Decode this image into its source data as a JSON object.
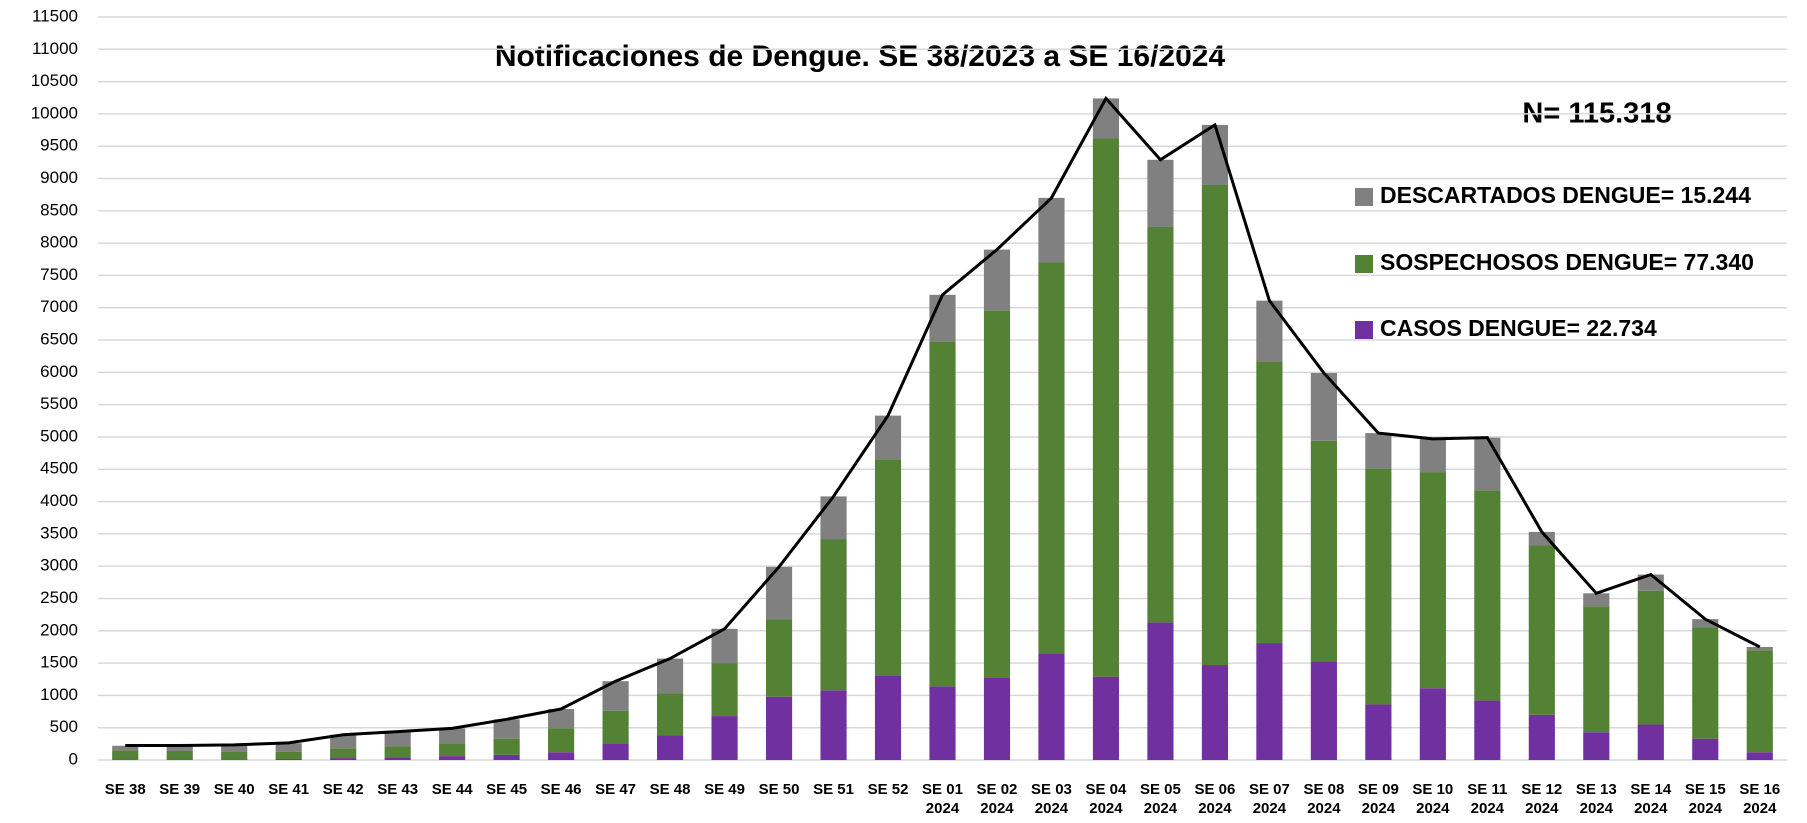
{
  "chart_data": {
    "type": "stacked_bar",
    "title": "Notificaciones de Dengue. SE  38/2023 a SE  16/2024",
    "annotation": "N= 115.318",
    "categories": [
      "SE 38",
      "SE 39",
      "SE 40",
      "SE 41",
      "SE 42",
      "SE 43",
      "SE 44",
      "SE 45",
      "SE 46",
      "SE 47",
      "SE 48",
      "SE 49",
      "SE 50",
      "SE 51",
      "SE 52",
      "SE 01\n2024",
      "SE 02\n2024",
      "SE 03\n2024",
      "SE 04\n2024",
      "SE 05\n2024",
      "SE 06\n2024",
      "SE 07\n2024",
      "SE 08\n2024",
      "SE 09\n2024",
      "SE 10\n2024",
      "SE 11\n2024",
      "SE 12\n2024",
      "SE 13\n2024",
      "SE 14\n2024",
      "SE 15\n2024",
      "SE 16\n2024"
    ],
    "series": [
      {
        "name": "CASOS DENGUE= 22.734",
        "color": "#7030a0",
        "values": [
          10,
          10,
          10,
          15,
          30,
          40,
          60,
          80,
          120,
          260,
          380,
          680,
          980,
          1080,
          1310,
          1140,
          1280,
          1650,
          1290,
          2130,
          1470,
          1810,
          1530,
          860,
          1110,
          920,
          700,
          430,
          550,
          330,
          120
        ]
      },
      {
        "name": "SOSPECHOSOS DENGUE= 77.340",
        "color": "#548235",
        "values": [
          140,
          130,
          120,
          110,
          150,
          170,
          200,
          250,
          370,
          500,
          650,
          820,
          1200,
          2340,
          3340,
          5340,
          5680,
          6050,
          8330,
          6120,
          7430,
          4350,
          3410,
          3650,
          3340,
          3250,
          2620,
          1950,
          2070,
          1720,
          1580
        ]
      },
      {
        "name": "DESCARTADOS DENGUE= 15.244",
        "color": "#808080",
        "values": [
          70,
          80,
          100,
          135,
          210,
          230,
          230,
          300,
          300,
          460,
          540,
          530,
          810,
          660,
          680,
          720,
          940,
          1000,
          620,
          1040,
          930,
          950,
          1050,
          550,
          520,
          820,
          210,
          200,
          250,
          130,
          50
        ]
      }
    ],
    "total_line": {
      "color": "#000000",
      "values": [
        225,
        225,
        235,
        265,
        390,
        440,
        490,
        630,
        790,
        1220,
        1570,
        2030,
        2990,
        4080,
        5330,
        7200,
        7900,
        8700,
        10240,
        9290,
        9830,
        7110,
        5990,
        5060,
        4970,
        4990,
        3530,
        2580,
        2870,
        2180,
        1750
      ]
    },
    "ylim": [
      0,
      11500
    ],
    "yticks": [
      0,
      500,
      1000,
      1500,
      2000,
      2500,
      3000,
      3500,
      4000,
      4500,
      5000,
      5500,
      6000,
      6500,
      7000,
      7500,
      8000,
      8500,
      9000,
      9500,
      10000,
      10500,
      11000,
      11500
    ],
    "grid": true
  }
}
